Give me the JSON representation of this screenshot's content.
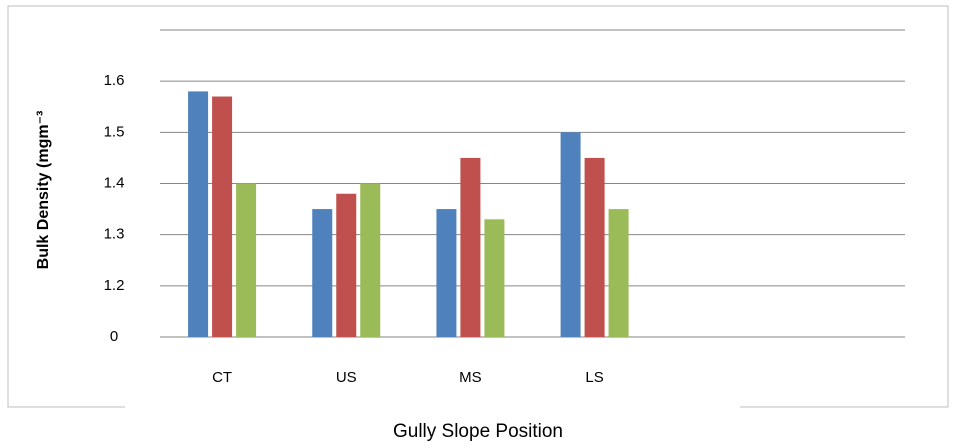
{
  "chart_data": {
    "type": "bar",
    "x_label": "Gully Slope Position",
    "y_label": "Bulk Density (mgm⁻³",
    "categories": [
      "CT",
      "US",
      "MS",
      "LS",
      null,
      null
    ],
    "series": [
      {
        "color": "#4f81bd",
        "values": [
          1.58,
          1.35,
          1.35,
          1.5,
          null,
          null
        ]
      },
      {
        "color": "#c0504d",
        "values": [
          1.57,
          1.38,
          1.45,
          1.45,
          null,
          null
        ]
      },
      {
        "color": "#9bbb59",
        "values": [
          1.4,
          1.4,
          1.33,
          1.35,
          null,
          null
        ]
      }
    ],
    "ylim": [
      0,
      1.7
    ],
    "yticks": [
      0,
      1.2,
      1.3,
      1.4,
      1.5,
      1.6
    ],
    "grid": true
  }
}
